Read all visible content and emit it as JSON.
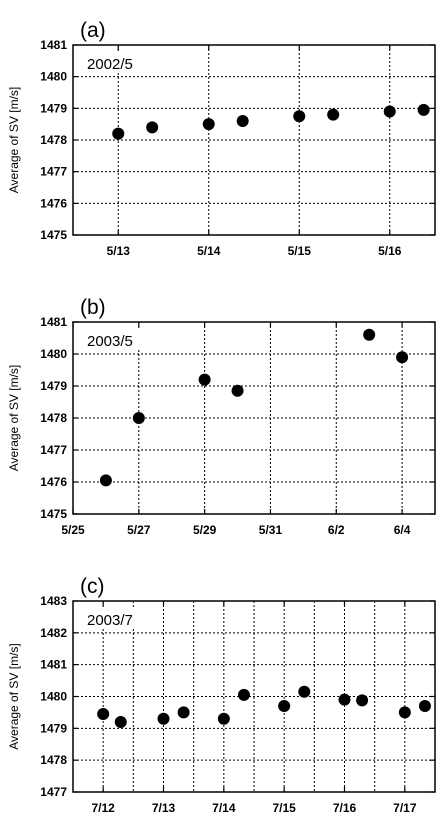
{
  "chart_data": [
    {
      "type": "scatter",
      "panel_label": "(a)",
      "inset_label": "2002/5",
      "ylabel": "Average of SV [m/s]",
      "ylim": [
        1475,
        1481
      ],
      "yticks": [
        1475,
        1476,
        1477,
        1478,
        1479,
        1480,
        1481
      ],
      "x_axis": "date",
      "xlim": [
        "2002-05-12T12:00",
        "2002-05-16T12:00"
      ],
      "xticks": [
        "2002-05-13",
        "2002-05-14",
        "2002-05-15",
        "2002-05-16"
      ],
      "xtick_labels": [
        "5/13",
        "5/14",
        "5/15",
        "5/16"
      ],
      "grid": true,
      "points": [
        {
          "x": "2002-05-13T00:00",
          "y": 1478.2
        },
        {
          "x": "2002-05-13T09:00",
          "y": 1478.4
        },
        {
          "x": "2002-05-14T00:00",
          "y": 1478.5
        },
        {
          "x": "2002-05-14T09:00",
          "y": 1478.6
        },
        {
          "x": "2002-05-15T00:00",
          "y": 1478.75
        },
        {
          "x": "2002-05-15T09:00",
          "y": 1478.8
        },
        {
          "x": "2002-05-16T00:00",
          "y": 1478.9
        },
        {
          "x": "2002-05-16T09:00",
          "y": 1478.95
        }
      ]
    },
    {
      "type": "scatter",
      "panel_label": "(b)",
      "inset_label": "2003/5",
      "ylabel": "Average of SV [m/s]",
      "ylim": [
        1475,
        1481
      ],
      "yticks": [
        1475,
        1476,
        1477,
        1478,
        1479,
        1480,
        1481
      ],
      "x_axis": "date",
      "xlim": [
        "2003-05-25",
        "2003-06-05"
      ],
      "xticks": [
        "2003-05-25",
        "2003-05-27",
        "2003-05-29",
        "2003-05-31",
        "2003-06-02",
        "2003-06-04"
      ],
      "xtick_labels": [
        "5/25",
        "5/27",
        "5/29",
        "5/31",
        "6/2",
        "6/4"
      ],
      "grid": true,
      "points": [
        {
          "x": "2003-05-26",
          "y": 1476.05
        },
        {
          "x": "2003-05-27",
          "y": 1478.0
        },
        {
          "x": "2003-05-29",
          "y": 1479.2
        },
        {
          "x": "2003-05-30",
          "y": 1478.85
        },
        {
          "x": "2003-06-03",
          "y": 1480.6
        },
        {
          "x": "2003-06-04",
          "y": 1479.9
        }
      ]
    },
    {
      "type": "scatter",
      "panel_label": "(c)",
      "inset_label": "2003/7",
      "ylabel": "Average of SV [m/s]",
      "ylim": [
        1477,
        1483
      ],
      "yticks": [
        1477,
        1478,
        1479,
        1480,
        1481,
        1482,
        1483
      ],
      "x_axis": "date",
      "xlim": [
        "2003-07-11T12:00",
        "2003-07-17T12:00"
      ],
      "xticks": [
        "2003-07-12",
        "2003-07-13",
        "2003-07-14",
        "2003-07-15",
        "2003-07-16",
        "2003-07-17"
      ],
      "xtick_labels": [
        "7/12",
        "7/13",
        "7/14",
        "7/15",
        "7/16",
        "7/17"
      ],
      "grid": true,
      "points": [
        {
          "x": "2003-07-12T00:00",
          "y": 1479.45
        },
        {
          "x": "2003-07-12T07:00",
          "y": 1479.2
        },
        {
          "x": "2003-07-13T00:00",
          "y": 1479.3
        },
        {
          "x": "2003-07-13T08:00",
          "y": 1479.5
        },
        {
          "x": "2003-07-14T00:00",
          "y": 1479.3
        },
        {
          "x": "2003-07-14T08:00",
          "y": 1480.05
        },
        {
          "x": "2003-07-15T00:00",
          "y": 1479.7
        },
        {
          "x": "2003-07-15T08:00",
          "y": 1480.15
        },
        {
          "x": "2003-07-16T00:00",
          "y": 1479.9
        },
        {
          "x": "2003-07-16T07:00",
          "y": 1479.88
        },
        {
          "x": "2003-07-17T00:00",
          "y": 1479.5
        },
        {
          "x": "2003-07-17T08:00",
          "y": 1479.7
        }
      ]
    }
  ]
}
